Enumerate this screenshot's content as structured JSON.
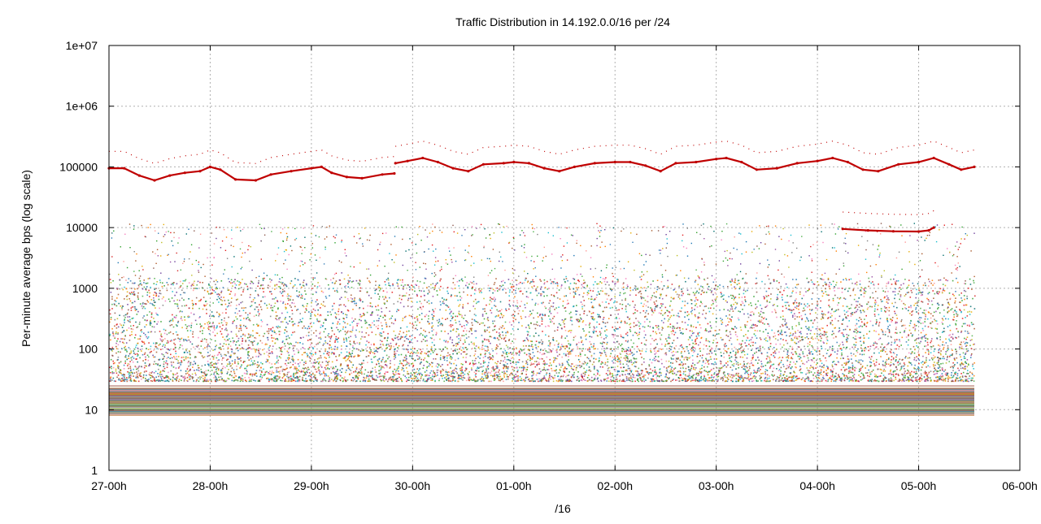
{
  "chart_data": {
    "type": "scatter",
    "title": "Traffic Distribution in 14.192.0.0/16 per /24",
    "xlabel": "/16",
    "ylabel": "Per-minute average bps (log scale)",
    "yscale": "log",
    "ylim": [
      1,
      10000000
    ],
    "xlim": [
      0,
      9
    ],
    "grid": true,
    "legend": "none",
    "x_ticks": [
      {
        "value": 0,
        "label": "27-00h"
      },
      {
        "value": 1,
        "label": "28-00h"
      },
      {
        "value": 2,
        "label": "29-00h"
      },
      {
        "value": 3,
        "label": "30-00h"
      },
      {
        "value": 4,
        "label": "01-00h"
      },
      {
        "value": 5,
        "label": "02-00h"
      },
      {
        "value": 6,
        "label": "03-00h"
      },
      {
        "value": 7,
        "label": "04-00h"
      },
      {
        "value": 8,
        "label": "05-00h"
      },
      {
        "value": 9,
        "label": "06-00h"
      }
    ],
    "y_ticks": [
      {
        "value": 1,
        "label": "1"
      },
      {
        "value": 10,
        "label": "10"
      },
      {
        "value": 100,
        "label": "100"
      },
      {
        "value": 1000,
        "label": "1000"
      },
      {
        "value": 10000,
        "label": "10000"
      },
      {
        "value": 100000,
        "label": "100000"
      },
      {
        "value": 1000000,
        "label": "1e+06"
      },
      {
        "value": 10000000,
        "label": "1e+07"
      }
    ],
    "series": [
      {
        "color": "#c00000",
        "x": [
          0,
          0.15,
          0.3,
          0.45,
          0.6,
          0.75,
          0.9,
          1.0,
          1.1,
          1.25,
          1.45,
          1.6,
          1.8,
          2.0,
          2.1,
          2.2,
          2.35,
          2.5,
          2.7,
          2.82
        ],
        "y": [
          95000,
          95000,
          72000,
          60000,
          72000,
          80000,
          85000,
          100000,
          90000,
          62000,
          60000,
          75000,
          85000,
          95000,
          100000,
          80000,
          68000,
          65000,
          75000,
          78000
        ]
      },
      {
        "color": "#c00000",
        "x": [
          2.83,
          2.95,
          3.1,
          3.25,
          3.4,
          3.55,
          3.7,
          3.9,
          4.0,
          4.15,
          4.3,
          4.45,
          4.6,
          4.8,
          5.0,
          5.15,
          5.3,
          5.45,
          5.6,
          5.8,
          6.0,
          6.1,
          6.25,
          6.4,
          6.6,
          6.8,
          7.0,
          7.15,
          7.3,
          7.45,
          7.6,
          7.8,
          8.0,
          8.15,
          8.3,
          8.42,
          8.55
        ],
        "y": [
          115000,
          125000,
          140000,
          120000,
          95000,
          85000,
          110000,
          115000,
          120000,
          115000,
          95000,
          85000,
          100000,
          115000,
          120000,
          120000,
          105000,
          85000,
          115000,
          120000,
          135000,
          140000,
          120000,
          90000,
          95000,
          115000,
          125000,
          140000,
          120000,
          90000,
          85000,
          110000,
          120000,
          140000,
          110000,
          90000,
          100000
        ]
      },
      {
        "color": "#c00000",
        "x": [
          7.25,
          7.5,
          7.75,
          8.0,
          8.1,
          8.15
        ],
        "y": [
          9500,
          9000,
          8700,
          8600,
          9000,
          10000
        ]
      }
    ]
  }
}
